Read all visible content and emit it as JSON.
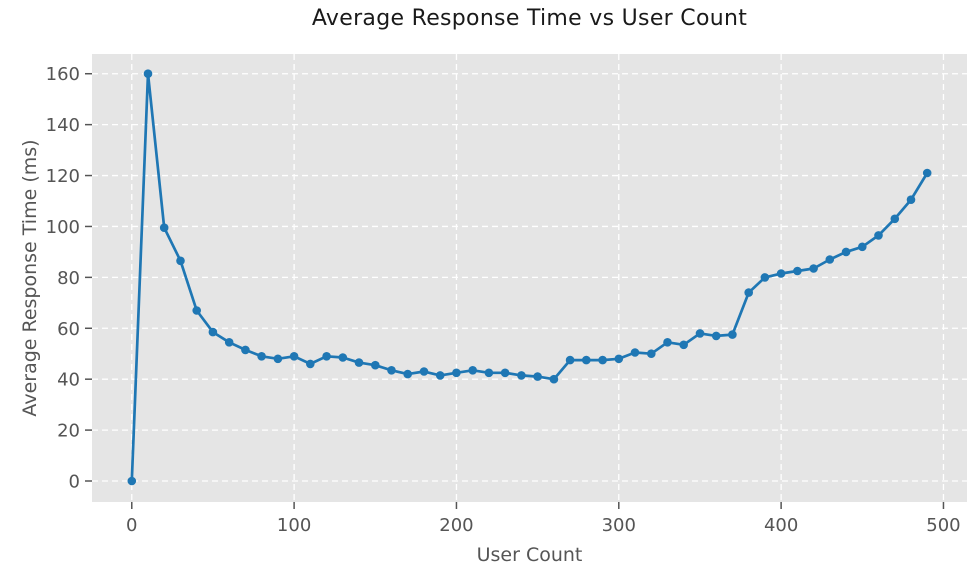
{
  "chart_data": {
    "type": "line",
    "title": "Average Response Time vs User Count",
    "xlabel": "User Count",
    "ylabel": "Average Response Time (ms)",
    "x": [
      0,
      10,
      20,
      30,
      40,
      50,
      60,
      70,
      80,
      90,
      100,
      110,
      120,
      130,
      140,
      150,
      160,
      170,
      180,
      190,
      200,
      210,
      220,
      230,
      240,
      250,
      260,
      270,
      280,
      290,
      300,
      310,
      320,
      330,
      340,
      350,
      360,
      370,
      380,
      390,
      400,
      410,
      420,
      430,
      440,
      450,
      460,
      470,
      480,
      490
    ],
    "y": [
      0,
      160,
      99.5,
      86.5,
      67,
      58.5,
      54.5,
      51.5,
      49,
      48,
      49,
      46,
      49,
      48.5,
      46.5,
      45.5,
      43.5,
      42,
      43,
      41.5,
      42.5,
      43.5,
      42.5,
      42.5,
      41.5,
      41,
      40,
      47.5,
      47.5,
      47.5,
      48,
      50.5,
      50,
      54.5,
      53.5,
      58,
      57,
      57.5,
      74,
      80,
      81.5,
      82.5,
      83.5,
      87,
      90,
      92,
      96.5,
      103,
      110.5,
      121
    ],
    "x_ticks": [
      0,
      100,
      200,
      300,
      400,
      500
    ],
    "y_ticks": [
      0,
      20,
      40,
      60,
      80,
      100,
      120,
      140,
      160
    ],
    "xlim": [
      -24.5,
      514.5
    ],
    "ylim": [
      -8.25,
      167.75
    ],
    "grid": "dashed",
    "legend": null,
    "colors": {
      "line": "#1f77b4",
      "marker": "#1f77b4",
      "plot_background": "#e5e5e5",
      "figure_background": "#ffffff",
      "grid_line": "#ffffff",
      "tick_text": "#555555",
      "title_text": "#1a1a1a"
    }
  }
}
